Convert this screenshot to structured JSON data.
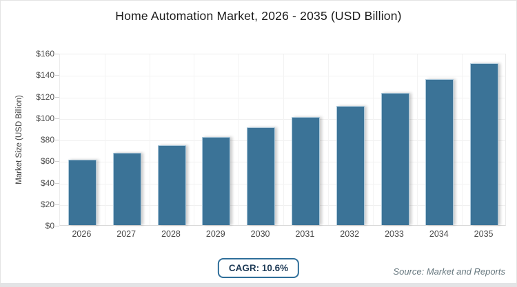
{
  "title": "Home Automation Market, 2026 - 2035 (USD Billion)",
  "chart_data": {
    "type": "bar",
    "title": "Home Automation Market, 2026 - 2035 (USD Billion)",
    "categories": [
      "2026",
      "2027",
      "2028",
      "2029",
      "2030",
      "2031",
      "2032",
      "2033",
      "2034",
      "2035"
    ],
    "values": [
      60.6,
      67.0,
      74.1,
      82.0,
      90.7,
      100.3,
      110.9,
      122.7,
      135.7,
      150.1
    ],
    "xlabel": "",
    "ylabel": "Market Size (USD Billion)",
    "ylim": [
      0,
      160
    ],
    "ytick_step": 20,
    "ytick_prefix": "$",
    "grid": true,
    "legend_position": "none",
    "bar_color": "#3B7397",
    "bar_edge_color": "#AECADC"
  },
  "footer": {
    "cagr_label": "CAGR: 10.6%",
    "source": "Source: Market and Reports"
  },
  "colors": {
    "accent": "#2E6E99",
    "badge_text": "#1E3A56",
    "source_text": "#66777E"
  }
}
